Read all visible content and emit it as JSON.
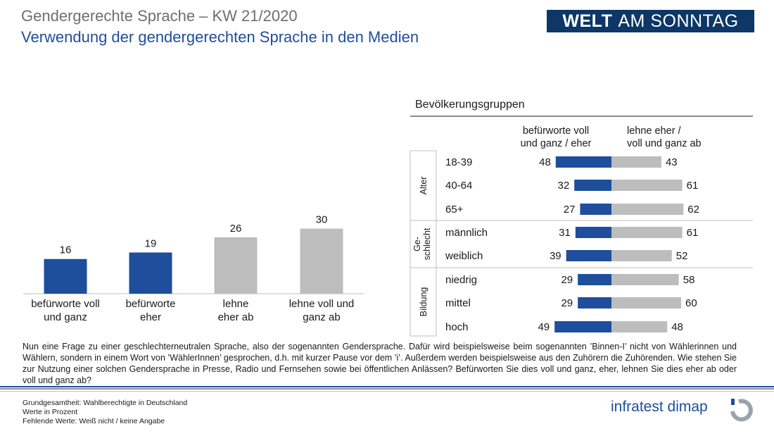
{
  "header": {
    "title": "Gendergerechte Sprache – KW 21/2020",
    "subtitle": "Verwendung der gendergerechten Sprache in den Medien",
    "logo_bold": "WELT",
    "logo_rest": "AM SONNTAG"
  },
  "colors": {
    "blue": "#1e4e9c",
    "gray": "#bdbdbd",
    "navy": "#0c3766"
  },
  "chart_data": [
    {
      "type": "bar",
      "title": "",
      "categories": [
        "befürworte voll\nund ganz",
        "befürworte\neher",
        "lehne\neher ab",
        "lehne voll und\nganz ab"
      ],
      "values": [
        16,
        19,
        26,
        30
      ],
      "colors": [
        "#1e4e9c",
        "#1e4e9c",
        "#bdbdbd",
        "#bdbdbd"
      ],
      "ylim": [
        0,
        50
      ],
      "xlabel": "",
      "ylabel": ""
    },
    {
      "type": "bar",
      "orientation": "horizontal-diverging",
      "title": "Bevölkerungsgruppen",
      "series": [
        {
          "name": "befürworte voll\nund ganz / eher",
          "values": [
            48,
            32,
            27,
            31,
            39,
            29,
            29,
            49
          ]
        },
        {
          "name": "lehne eher /\nvoll und ganz ab",
          "values": [
            43,
            61,
            62,
            61,
            52,
            58,
            60,
            48
          ]
        }
      ],
      "categories": [
        "18-39",
        "40-64",
        "65+",
        "männlich",
        "weiblich",
        "niedrig",
        "mittel",
        "hoch"
      ],
      "groups": [
        {
          "label": "Alter",
          "count": 3
        },
        {
          "label": "Ge-\nschlecht",
          "count": 2
        },
        {
          "label": "Bildung",
          "count": 3
        }
      ]
    }
  ],
  "question": "Nun eine Frage zu einer geschlechterneutralen Sprache, also der sogenannten Gendersprache. Dafür wird beispielsweise beim sogenannten ’Binnen-I’ nicht von Wählerinnen und Wählern, sondern in einem Wort von ’WählerInnen’ gesprochen, d.h. mit kurzer Pause vor dem ’i’. Außerdem werden beispielsweise aus den Zuhörern die Zuhörenden. Wie stehen Sie zur Nutzung einer solchen Gendersprache in Presse, Radio und Fernsehen sowie bei öffentlichen Anlässen? Befürworten Sie dies voll und ganz, eher, lehnen Sie dies eher ab oder voll und ganz ab?",
  "footer": {
    "line1": "Grundgesamtheit:  Wahlberechtigte in Deutschland",
    "line2": "Werte in Prozent",
    "line3": "Fehlende  Werte: Weiß nicht / keine Angabe",
    "brand": "infratest dimap",
    "brand_icon": "infratest-dimap-mark-icon"
  }
}
